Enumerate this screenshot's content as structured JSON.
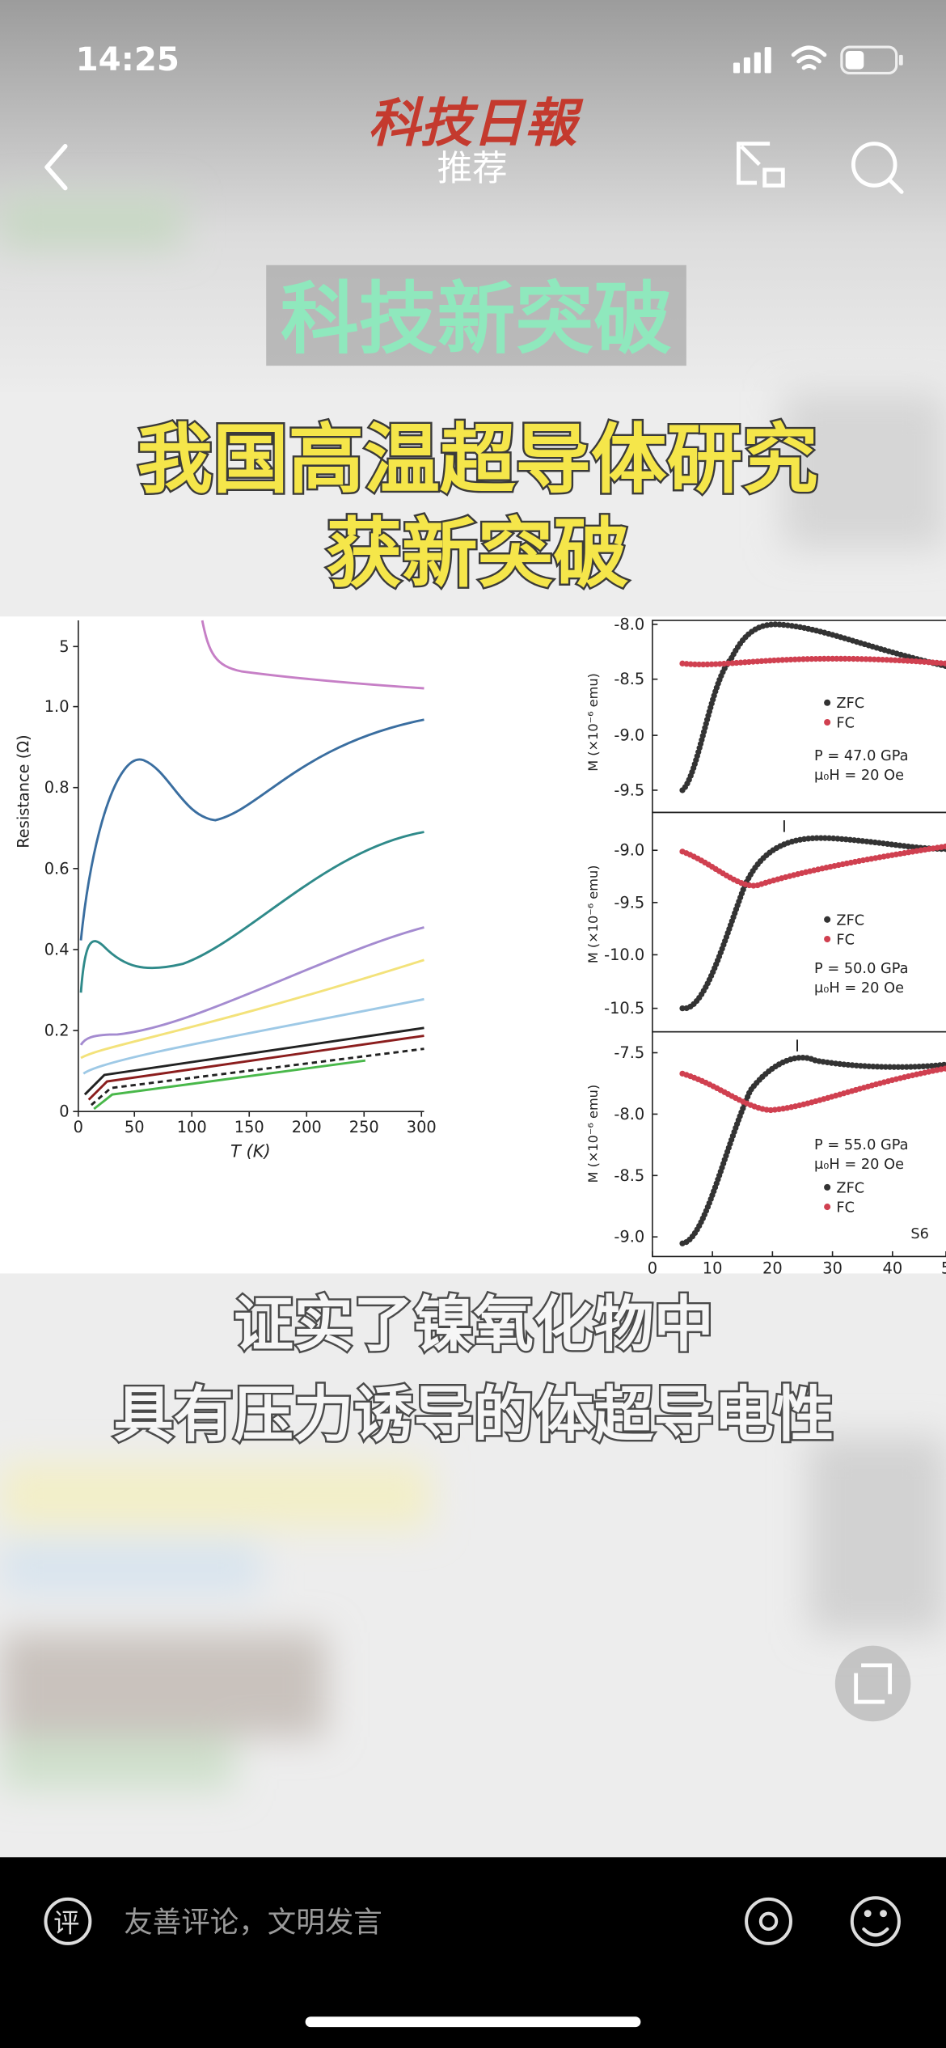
{
  "status_bar": {
    "time": "14:25"
  },
  "nav": {
    "logo": "科技日報",
    "tab": "推荐"
  },
  "video": {
    "tag": "科技新突破",
    "headline": [
      "我国高温超导体研究",
      "获新突破"
    ],
    "figure_left": {
      "y_label": "Resistance (Ω)",
      "x_label": "T (K)",
      "yticks": [
        "0",
        "0.2",
        "0.4",
        "0.6",
        "0.8",
        "1.0",
        "5"
      ],
      "xticks": [
        "0",
        "50",
        "100",
        "150",
        "200",
        "250",
        "300"
      ]
    },
    "figure_right": {
      "y_label": "M (×10⁻⁶ emu)",
      "panels": [
        {
          "yticks": [
            "-8.0",
            "-8.5",
            "-9.0",
            "-9.5"
          ],
          "legend": [
            "ZFC",
            "FC"
          ],
          "pressure": "P = 47.0 GPa",
          "field": "μ₀H = 20 Oe"
        },
        {
          "yticks": [
            "-9.0",
            "-9.5",
            "-10.0",
            "-10.5"
          ],
          "legend": [
            "ZFC",
            "FC"
          ],
          "pressure": "P = 50.0 GPa",
          "field": "μ₀H = 20 Oe"
        },
        {
          "yticks": [
            "-7.5",
            "-8.0",
            "-8.5",
            "-9.0"
          ],
          "legend": [
            "ZFC",
            "FC"
          ],
          "pressure": "P = 55.0 GPa",
          "field": "μ₀H = 20 Oe"
        }
      ],
      "xticks": [
        "0",
        "10",
        "20",
        "30",
        "40",
        "5"
      ],
      "sample": "S6"
    },
    "subtitle": [
      "证实了镍氧化物中",
      "具有压力诱导的体超导电性"
    ]
  },
  "comment_bar": {
    "icon": "评",
    "placeholder": "友善评论，文明发言"
  }
}
